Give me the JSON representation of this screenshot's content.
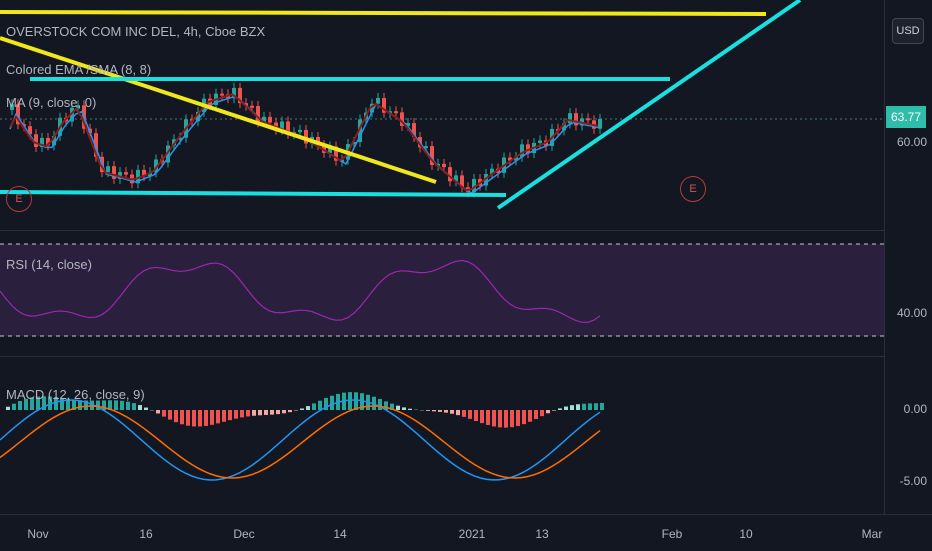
{
  "header": {
    "symbol_line": "OVERSTOCK COM INC DEL, 4h, Cboe BZX",
    "indicator_ema": "Colored EMA /SMA (8, 8)",
    "indicator_ma": "MA (9, close, 0)"
  },
  "price_axis": {
    "currency": "USD",
    "last_price": "63.77",
    "price_level": "60.00"
  },
  "rsi": {
    "label": "RSI (14, close)",
    "level": "40.00"
  },
  "macd": {
    "label": "MACD (12, 26, close, 9)",
    "level_zero": "0.00",
    "level_neg": "-5.00"
  },
  "time_axis": [
    "Nov",
    "16",
    "Dec",
    "14",
    "2021",
    "13",
    "Feb",
    "10",
    "Mar"
  ],
  "earnings_markers": [
    "E",
    "E"
  ],
  "colors": {
    "background": "#131722",
    "up": "#26a69a",
    "down": "#ef5350",
    "trendline_cyan": "#19e0e0",
    "trendline_yellow": "#f0e81a",
    "rsi_line": "#9c27b0",
    "macd_line": "#2196f3",
    "signal_line": "#ff6d00"
  }
}
